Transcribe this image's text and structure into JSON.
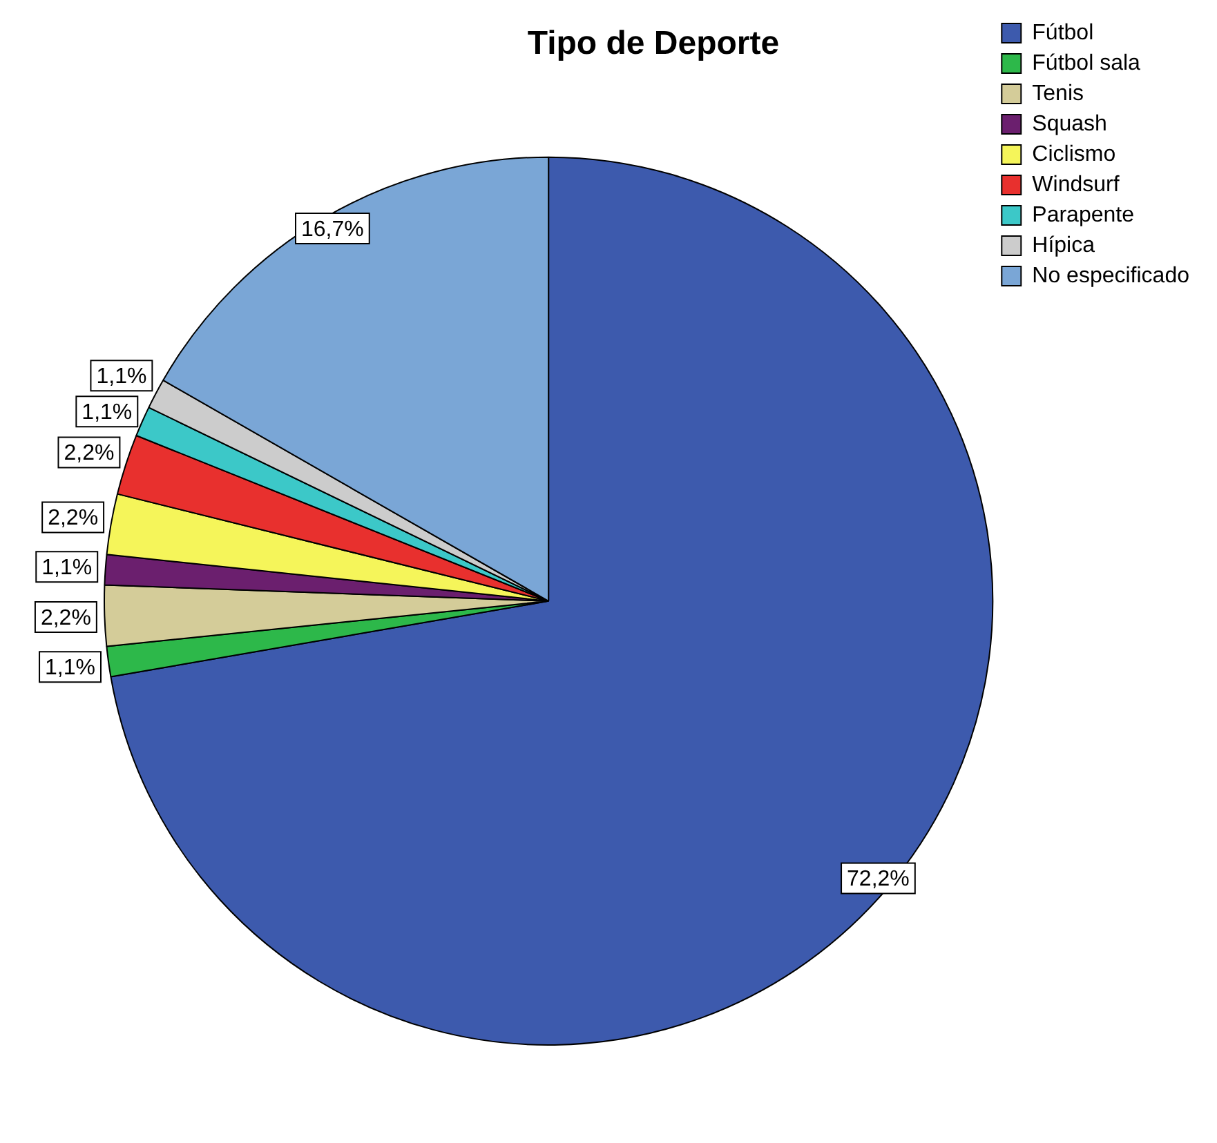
{
  "chart_data": {
    "type": "pie",
    "title": "Tipo de Deporte",
    "categories": [
      "Fútbol",
      "Fútbol sala",
      "Tenis",
      "Squash",
      "Ciclismo",
      "Windsurf",
      "Parapente",
      "Hípica",
      "No especificado"
    ],
    "values": [
      72.2,
      1.1,
      2.2,
      1.1,
      2.2,
      2.2,
      1.1,
      1.1,
      16.7
    ],
    "colors": [
      "#3d5aad",
      "#2db84a",
      "#d4cc99",
      "#6b1f6e",
      "#f5f55a",
      "#e8302e",
      "#3cc8c8",
      "#cccccc",
      "#7aa6d6"
    ],
    "value_labels": [
      "72,2%",
      "1,1%",
      "2,2%",
      "1,1%",
      "2,2%",
      "2,2%",
      "1,1%",
      "1,1%",
      "16,7%"
    ],
    "legend": "top right"
  }
}
